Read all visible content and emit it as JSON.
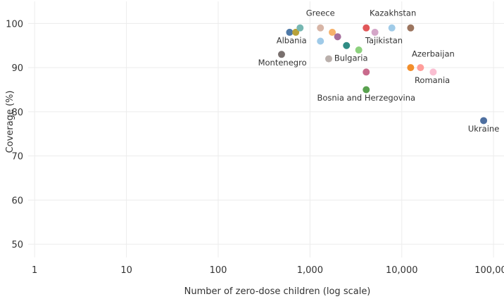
{
  "chart_data": {
    "type": "scatter",
    "title": "",
    "xlabel": "Number of zero-dose children (log scale)",
    "ylabel": "Coverage (%)",
    "x_scale": "log",
    "xlim": [
      0.85,
      130000
    ],
    "ylim": [
      47,
      105
    ],
    "x_ticks": [
      1,
      10,
      100,
      1000,
      10000,
      100000
    ],
    "x_tick_labels": [
      "1",
      "10",
      "100",
      "1,000",
      "10,000",
      "100,000"
    ],
    "y_ticks": [
      50,
      60,
      70,
      80,
      90,
      100
    ],
    "y_tick_labels": [
      "50",
      "60",
      "70",
      "80",
      "90",
      "100"
    ],
    "grid": true,
    "points": [
      {
        "x": 600,
        "y": 98,
        "color": "#4e79a7",
        "label": ""
      },
      {
        "x": 700,
        "y": 98,
        "color": "#b8a23a",
        "label": ""
      },
      {
        "x": 780,
        "y": 99,
        "color": "#76b7b2",
        "label": ""
      },
      {
        "x": 490,
        "y": 93,
        "color": "#79706e",
        "label": ""
      },
      {
        "x": 1300,
        "y": 99,
        "color": "#d7b5a6",
        "label": ""
      },
      {
        "x": 1300,
        "y": 96,
        "color": "#9fcae8",
        "label": ""
      },
      {
        "x": 1750,
        "y": 98,
        "color": "#f6b26b",
        "label": ""
      },
      {
        "x": 2000,
        "y": 97,
        "color": "#a66e9c",
        "label": ""
      },
      {
        "x": 1600,
        "y": 92,
        "color": "#bab0ac",
        "label": ""
      },
      {
        "x": 2500,
        "y": 95,
        "color": "#2f8c84",
        "label": ""
      },
      {
        "x": 3400,
        "y": 94,
        "color": "#8cd17d",
        "label": ""
      },
      {
        "x": 4100,
        "y": 99,
        "color": "#e15759",
        "label": ""
      },
      {
        "x": 5100,
        "y": 98,
        "color": "#d4a6c8",
        "label": ""
      },
      {
        "x": 4100,
        "y": 89,
        "color": "#c96a8c",
        "label": ""
      },
      {
        "x": 4100,
        "y": 85,
        "color": "#59a14f",
        "label": ""
      },
      {
        "x": 7800,
        "y": 99,
        "color": "#a0cbe8",
        "label": ""
      },
      {
        "x": 12500,
        "y": 99,
        "color": "#9c755f",
        "label": ""
      },
      {
        "x": 12500,
        "y": 90,
        "color": "#f28e2b",
        "label": ""
      },
      {
        "x": 16000,
        "y": 90,
        "color": "#ff9d9a",
        "label": ""
      },
      {
        "x": 22000,
        "y": 89,
        "color": "#fabfd2",
        "label": ""
      },
      {
        "x": 78000,
        "y": 78,
        "color": "#4e6fa0",
        "label": ""
      }
    ],
    "annotations": [
      {
        "text": "Greece",
        "x": 1300,
        "y": 101.7
      },
      {
        "text": "Kazakhstan",
        "x": 8000,
        "y": 101.7
      },
      {
        "text": "Albania",
        "x": 630,
        "y": 95.5
      },
      {
        "text": "Tajikistan",
        "x": 6400,
        "y": 95.5
      },
      {
        "text": "Montenegro",
        "x": 500,
        "y": 90.5
      },
      {
        "text": "Bulgaria",
        "x": 2800,
        "y": 91.5
      },
      {
        "text": "Azerbaijan",
        "x": 22000,
        "y": 92.5
      },
      {
        "text": "Romania",
        "x": 21500,
        "y": 86.5
      },
      {
        "text": "Bosnia and Herzegovina",
        "x": 4100,
        "y": 82.5
      },
      {
        "text": "Ukraine",
        "x": 78000,
        "y": 75.5
      }
    ]
  }
}
